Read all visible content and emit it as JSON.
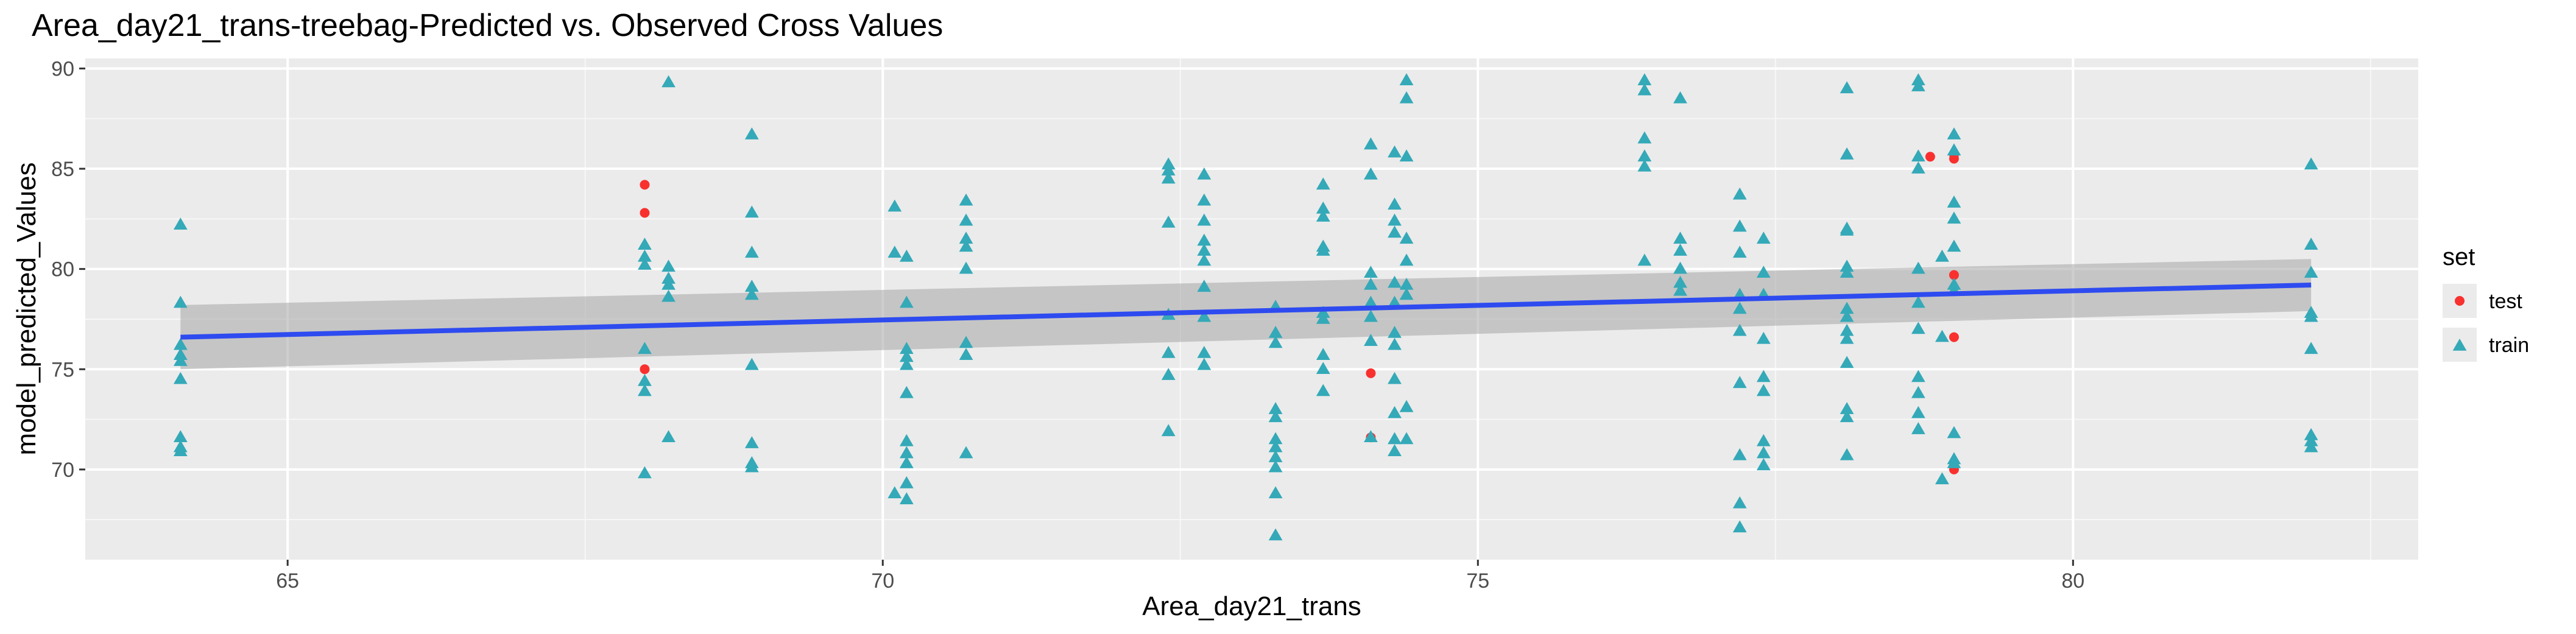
{
  "chart_data": {
    "type": "scatter",
    "title": "Area_day21_trans-treebag-Predicted vs. Observed Cross Values",
    "xlabel": "Area_day21_trans",
    "ylabel": "model_predicted_Values",
    "xlim": [
      63.3,
      82.9
    ],
    "ylim": [
      65.5,
      90.5
    ],
    "x_ticks": [
      65,
      70,
      75,
      80
    ],
    "y_ticks": [
      70,
      75,
      80,
      85,
      90
    ],
    "grid": true,
    "legend": {
      "title": "set",
      "position": "right",
      "entries": [
        "test",
        "train"
      ]
    },
    "colors": {
      "test": "#f8312f",
      "train": "#34a9b8",
      "trend": "#2e4bf0",
      "ribbon": "#a6a6a6",
      "panel": "#ebebeb"
    },
    "series": [
      {
        "name": "test",
        "marker": "circle",
        "points": [
          [
            68.0,
            84.2
          ],
          [
            68.0,
            82.8
          ],
          [
            68.0,
            75.0
          ],
          [
            74.1,
            74.8
          ],
          [
            74.1,
            71.6
          ],
          [
            78.8,
            85.6
          ],
          [
            79.0,
            85.7
          ],
          [
            79.0,
            85.5
          ],
          [
            79.0,
            79.7
          ],
          [
            79.0,
            76.6
          ],
          [
            79.0,
            70.0
          ]
        ]
      },
      {
        "name": "train",
        "marker": "triangle",
        "points": [
          [
            64.1,
            82.2
          ],
          [
            64.1,
            78.3
          ],
          [
            64.1,
            76.2
          ],
          [
            64.1,
            75.7
          ],
          [
            64.1,
            75.4
          ],
          [
            64.1,
            74.5
          ],
          [
            64.1,
            71.6
          ],
          [
            64.1,
            71.1
          ],
          [
            64.1,
            70.9
          ],
          [
            68.0,
            81.2
          ],
          [
            68.0,
            80.6
          ],
          [
            68.0,
            80.2
          ],
          [
            68.0,
            76.0
          ],
          [
            68.0,
            74.4
          ],
          [
            68.0,
            73.9
          ],
          [
            68.0,
            69.8
          ],
          [
            68.2,
            89.3
          ],
          [
            68.2,
            80.1
          ],
          [
            68.2,
            79.5
          ],
          [
            68.2,
            79.2
          ],
          [
            68.2,
            78.6
          ],
          [
            68.2,
            71.6
          ],
          [
            68.9,
            86.7
          ],
          [
            68.9,
            82.8
          ],
          [
            68.9,
            80.8
          ],
          [
            68.9,
            79.1
          ],
          [
            68.9,
            78.7
          ],
          [
            68.9,
            75.2
          ],
          [
            68.9,
            71.3
          ],
          [
            68.9,
            70.3
          ],
          [
            68.9,
            70.1
          ],
          [
            70.1,
            83.1
          ],
          [
            70.1,
            80.8
          ],
          [
            70.1,
            68.8
          ],
          [
            70.2,
            80.6
          ],
          [
            70.2,
            78.3
          ],
          [
            70.2,
            76.0
          ],
          [
            70.2,
            75.6
          ],
          [
            70.2,
            75.2
          ],
          [
            70.2,
            73.8
          ],
          [
            70.2,
            71.4
          ],
          [
            70.2,
            70.8
          ],
          [
            70.2,
            70.3
          ],
          [
            70.2,
            69.3
          ],
          [
            70.2,
            68.5
          ],
          [
            70.7,
            83.4
          ],
          [
            70.7,
            82.4
          ],
          [
            70.7,
            81.5
          ],
          [
            70.7,
            81.1
          ],
          [
            70.7,
            80.0
          ],
          [
            70.7,
            76.3
          ],
          [
            70.7,
            75.7
          ],
          [
            70.7,
            70.8
          ],
          [
            72.4,
            85.2
          ],
          [
            72.4,
            84.9
          ],
          [
            72.4,
            84.5
          ],
          [
            72.4,
            82.3
          ],
          [
            72.4,
            77.7
          ],
          [
            72.4,
            75.8
          ],
          [
            72.4,
            74.7
          ],
          [
            72.4,
            71.9
          ],
          [
            72.7,
            84.7
          ],
          [
            72.7,
            83.4
          ],
          [
            72.7,
            82.4
          ],
          [
            72.7,
            81.4
          ],
          [
            72.7,
            80.9
          ],
          [
            72.7,
            80.4
          ],
          [
            72.7,
            79.1
          ],
          [
            72.7,
            77.6
          ],
          [
            72.7,
            75.8
          ],
          [
            72.7,
            75.2
          ],
          [
            73.3,
            78.1
          ],
          [
            73.3,
            76.8
          ],
          [
            73.3,
            76.3
          ],
          [
            73.3,
            73.0
          ],
          [
            73.3,
            72.6
          ],
          [
            73.3,
            71.5
          ],
          [
            73.3,
            71.1
          ],
          [
            73.3,
            70.6
          ],
          [
            73.3,
            70.1
          ],
          [
            73.3,
            68.8
          ],
          [
            73.3,
            66.7
          ],
          [
            73.7,
            84.2
          ],
          [
            73.7,
            83.0
          ],
          [
            73.7,
            82.6
          ],
          [
            73.7,
            81.1
          ],
          [
            73.7,
            80.9
          ],
          [
            73.7,
            77.8
          ],
          [
            73.7,
            77.5
          ],
          [
            73.7,
            75.7
          ],
          [
            73.7,
            75.0
          ],
          [
            73.7,
            73.9
          ],
          [
            74.1,
            86.2
          ],
          [
            74.1,
            84.7
          ],
          [
            74.1,
            79.8
          ],
          [
            74.1,
            79.2
          ],
          [
            74.1,
            78.3
          ],
          [
            74.1,
            77.6
          ],
          [
            74.1,
            76.4
          ],
          [
            74.1,
            71.6
          ],
          [
            74.3,
            85.8
          ],
          [
            74.3,
            83.2
          ],
          [
            74.3,
            82.4
          ],
          [
            74.3,
            81.8
          ],
          [
            74.3,
            79.3
          ],
          [
            74.3,
            78.3
          ],
          [
            74.3,
            76.8
          ],
          [
            74.3,
            76.2
          ],
          [
            74.3,
            74.5
          ],
          [
            74.3,
            72.8
          ],
          [
            74.3,
            71.5
          ],
          [
            74.3,
            70.9
          ],
          [
            74.4,
            89.4
          ],
          [
            74.4,
            88.5
          ],
          [
            74.4,
            85.6
          ],
          [
            74.4,
            81.5
          ],
          [
            74.4,
            80.4
          ],
          [
            74.4,
            79.2
          ],
          [
            74.4,
            78.7
          ],
          [
            74.4,
            73.1
          ],
          [
            74.4,
            71.5
          ],
          [
            76.4,
            89.4
          ],
          [
            76.4,
            88.9
          ],
          [
            76.4,
            86.5
          ],
          [
            76.4,
            85.6
          ],
          [
            76.4,
            85.1
          ],
          [
            76.4,
            80.4
          ],
          [
            76.7,
            88.5
          ],
          [
            76.7,
            81.5
          ],
          [
            76.7,
            80.9
          ],
          [
            76.7,
            80.0
          ],
          [
            76.7,
            79.3
          ],
          [
            76.7,
            78.9
          ],
          [
            77.2,
            83.7
          ],
          [
            77.2,
            82.1
          ],
          [
            77.2,
            80.8
          ],
          [
            77.2,
            78.7
          ],
          [
            77.2,
            78.0
          ],
          [
            77.2,
            76.9
          ],
          [
            77.2,
            74.3
          ],
          [
            77.2,
            70.7
          ],
          [
            77.2,
            68.3
          ],
          [
            77.2,
            67.1
          ],
          [
            77.4,
            81.5
          ],
          [
            77.4,
            79.8
          ],
          [
            77.4,
            78.7
          ],
          [
            77.4,
            76.5
          ],
          [
            77.4,
            74.6
          ],
          [
            77.4,
            73.9
          ],
          [
            77.4,
            71.4
          ],
          [
            77.4,
            70.8
          ],
          [
            77.4,
            70.2
          ],
          [
            78.1,
            89.0
          ],
          [
            78.1,
            85.7
          ],
          [
            78.1,
            82.0
          ],
          [
            78.1,
            81.9
          ],
          [
            78.1,
            80.1
          ],
          [
            78.1,
            79.8
          ],
          [
            78.1,
            78.0
          ],
          [
            78.1,
            77.6
          ],
          [
            78.1,
            76.9
          ],
          [
            78.1,
            76.5
          ],
          [
            78.1,
            75.3
          ],
          [
            78.1,
            73.0
          ],
          [
            78.1,
            72.6
          ],
          [
            78.1,
            70.7
          ],
          [
            78.7,
            89.4
          ],
          [
            78.7,
            89.1
          ],
          [
            78.7,
            85.6
          ],
          [
            78.7,
            85.0
          ],
          [
            78.7,
            80.0
          ],
          [
            78.7,
            78.3
          ],
          [
            78.7,
            77.0
          ],
          [
            78.7,
            74.6
          ],
          [
            78.7,
            73.8
          ],
          [
            78.7,
            72.8
          ],
          [
            78.7,
            72.0
          ],
          [
            78.9,
            80.6
          ],
          [
            78.9,
            76.6
          ],
          [
            78.9,
            69.5
          ],
          [
            79.0,
            86.7
          ],
          [
            79.0,
            85.9
          ],
          [
            79.0,
            83.3
          ],
          [
            79.0,
            82.5
          ],
          [
            79.0,
            81.1
          ],
          [
            79.0,
            79.2
          ],
          [
            79.0,
            78.9
          ],
          [
            79.0,
            71.8
          ],
          [
            79.0,
            70.5
          ],
          [
            79.0,
            70.3
          ],
          [
            82.0,
            85.2
          ],
          [
            82.0,
            81.2
          ],
          [
            82.0,
            79.8
          ],
          [
            82.0,
            77.8
          ],
          [
            82.0,
            77.6
          ],
          [
            82.0,
            76.0
          ],
          [
            82.0,
            71.7
          ],
          [
            82.0,
            71.4
          ],
          [
            82.0,
            71.1
          ]
        ]
      }
    ],
    "trend": {
      "method": "linear",
      "x": [
        64.1,
        82.0
      ],
      "y": [
        76.6,
        79.2
      ],
      "ribbon_lower": [
        75.0,
        77.9
      ],
      "ribbon_upper": [
        78.2,
        80.5
      ]
    }
  }
}
